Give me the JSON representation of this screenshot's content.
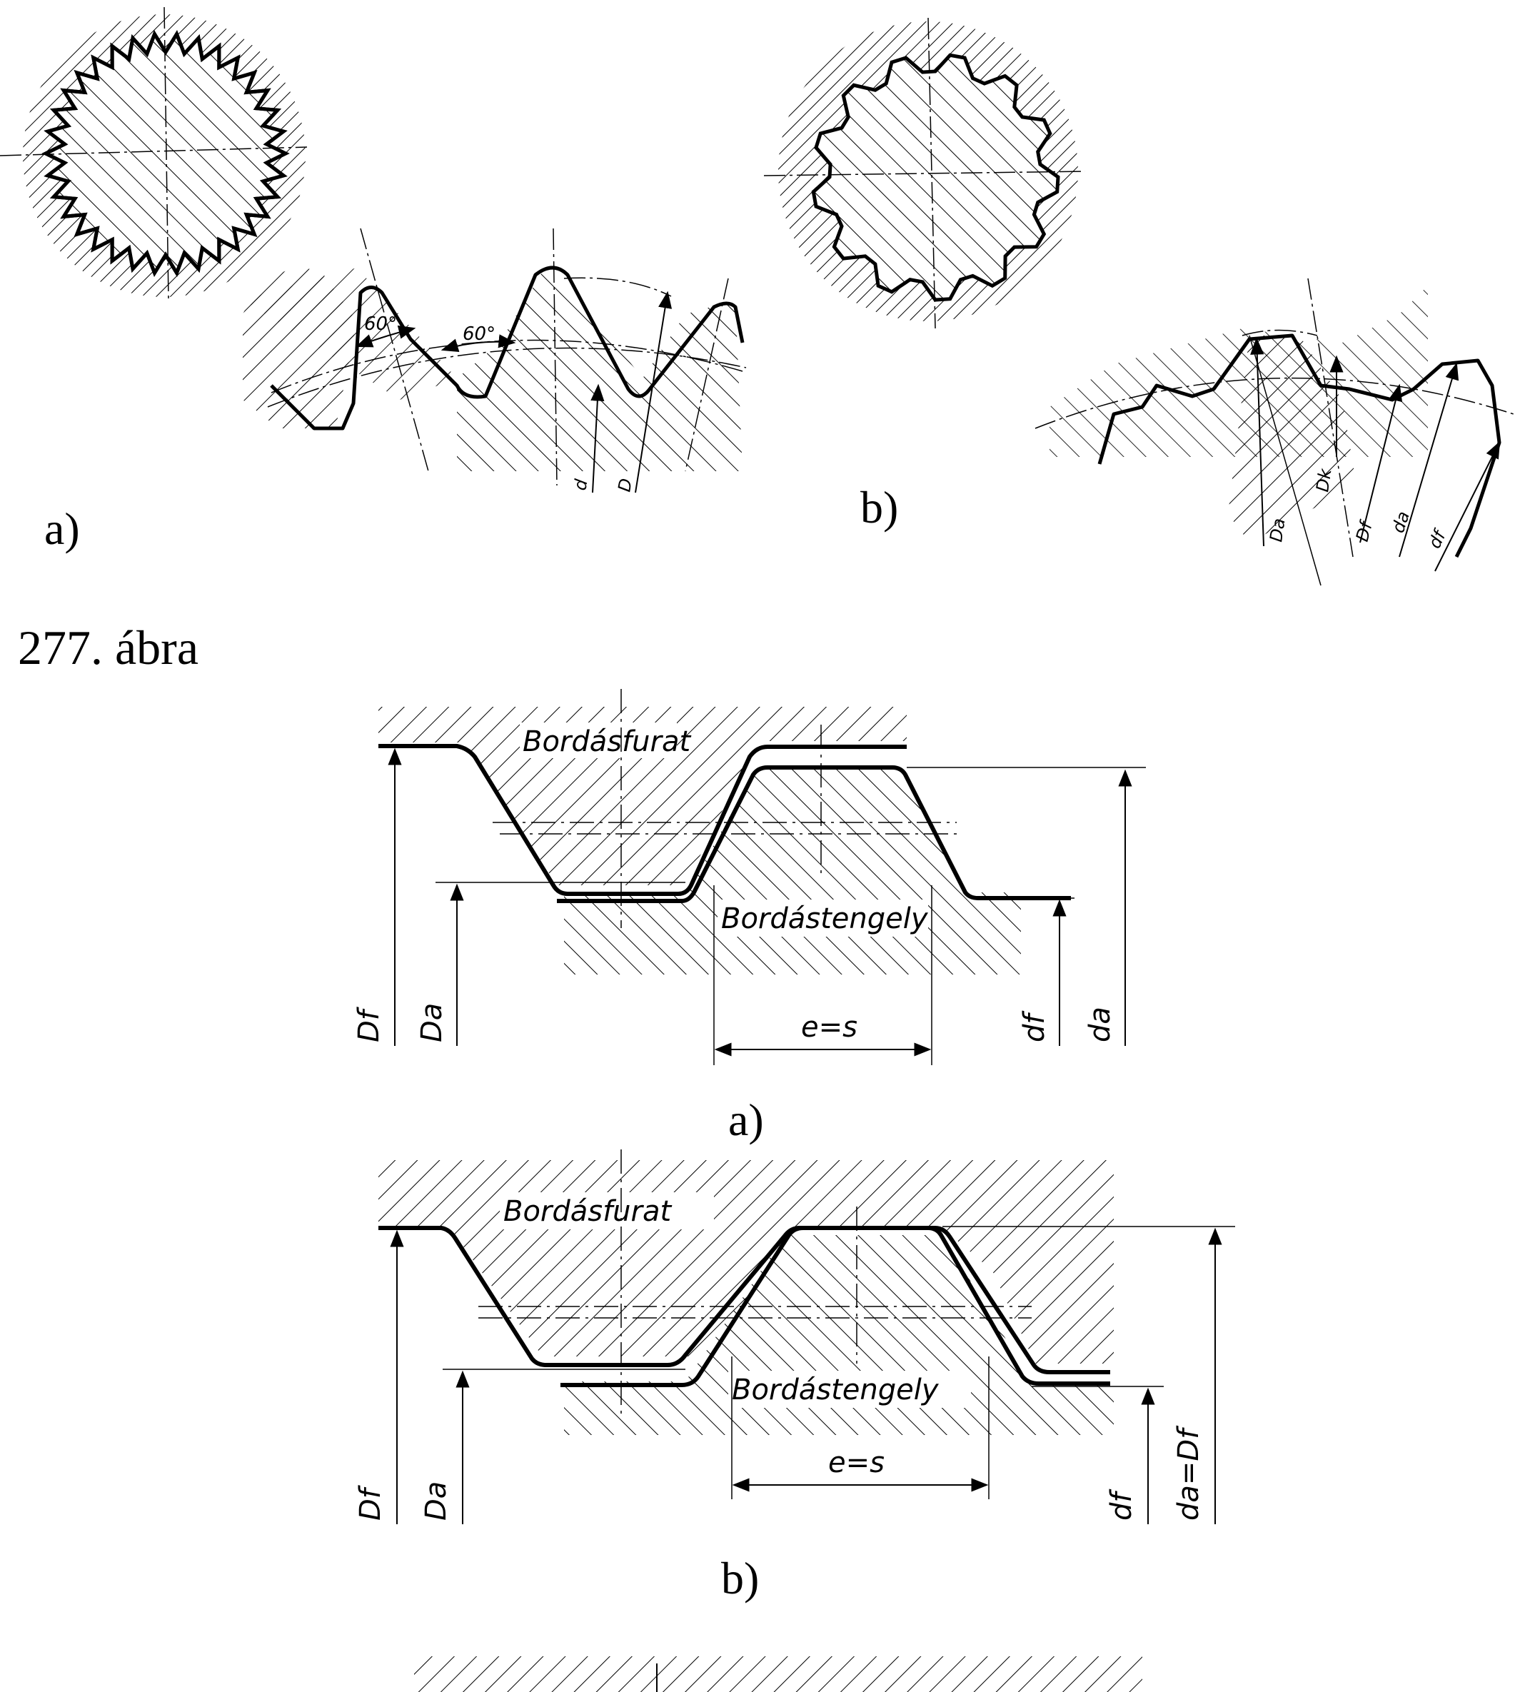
{
  "figure_277": {
    "caption": "277. ábra",
    "panel_a": {
      "label": "a)",
      "angle_left": "60°",
      "angle_right": "60°",
      "dim_d": "d",
      "dim_D": "D"
    },
    "panel_b": {
      "label": "b)",
      "dim_Da": "Da",
      "dim_Dk": "Dk",
      "dim_Df": "Df",
      "dim_da": "da",
      "dim_df": "df"
    }
  },
  "figure_278": {
    "panel_a": {
      "label": "a)",
      "hub_text": "Bordásfurat",
      "shaft_text": "Bordástengely",
      "width_text": "e=s",
      "dim_Df": "Df",
      "dim_Da": "Da",
      "dim_df": "df",
      "dim_da": "da"
    },
    "panel_b": {
      "label": "b)",
      "hub_text": "Bordásfurat",
      "shaft_text": "Bordástengely",
      "width_text": "e=s",
      "dim_Df": "Df",
      "dim_Da": "Da",
      "dim_df": "df",
      "dim_da_eq": "da=Df"
    }
  }
}
